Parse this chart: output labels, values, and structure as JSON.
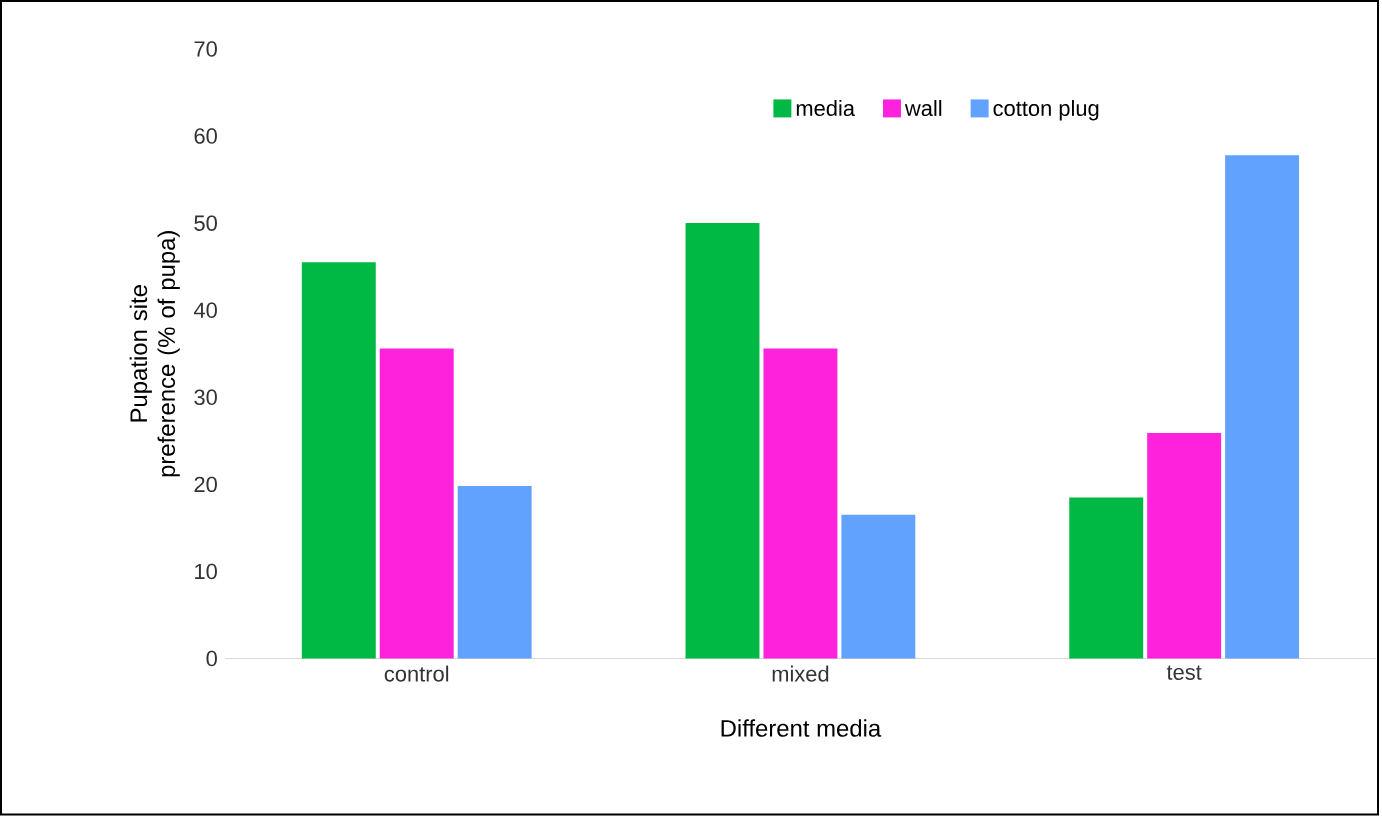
{
  "chart_data": {
    "type": "bar",
    "xlabel": "Different media",
    "ylabel": "Pupation site preference (% of pupa)",
    "categories": [
      "control",
      "mixed",
      "test"
    ],
    "series": [
      {
        "name": "media",
        "color": "#00b944",
        "values": [
          45.5,
          50,
          18.5
        ]
      },
      {
        "name": "wall",
        "color": "#ff22dd",
        "values": [
          35.6,
          35.6,
          25.9
        ]
      },
      {
        "name": "cotton plug",
        "color": "#61a2ff",
        "values": [
          19.8,
          16.5,
          57.8
        ]
      }
    ],
    "ylim": [
      0,
      70
    ],
    "yticks": [
      0,
      10,
      20,
      30,
      40,
      50,
      60,
      70
    ],
    "legend": "top"
  }
}
